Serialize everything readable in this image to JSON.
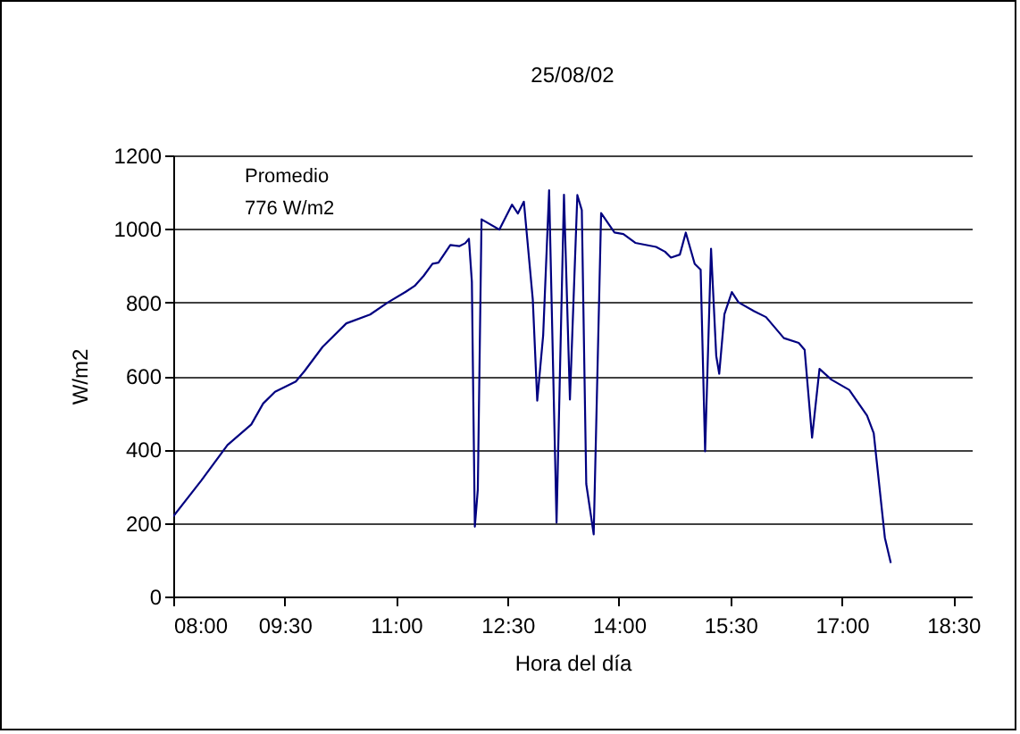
{
  "chart_data": {
    "type": "line",
    "title": "25/08/02",
    "xlabel": "Hora del día",
    "ylabel": "W/m2",
    "annotations": [
      "Promedio",
      "776 W/m2"
    ],
    "x": [
      8.0,
      8.375,
      8.73,
      9.05,
      9.21,
      9.37,
      9.65,
      9.77,
      10.01,
      10.33,
      10.65,
      10.89,
      11.13,
      11.25,
      11.37,
      11.49,
      11.57,
      11.73,
      11.85,
      11.93,
      11.98,
      12.02,
      12.06,
      12.1,
      12.15,
      12.39,
      12.56,
      12.64,
      12.72,
      12.84,
      12.9,
      12.98,
      13.06,
      13.16,
      13.26,
      13.34,
      13.44,
      13.5,
      13.56,
      13.66,
      13.76,
      13.94,
      14.06,
      14.22,
      14.5,
      14.62,
      14.7,
      14.82,
      14.9,
      15.02,
      15.1,
      15.16,
      15.24,
      15.31,
      15.35,
      15.42,
      15.52,
      15.61,
      15.82,
      15.98,
      16.22,
      16.42,
      16.5,
      16.6,
      16.7,
      16.86,
      17.1,
      17.34,
      17.43,
      17.58,
      17.66
    ],
    "series": [
      {
        "color": "#000080",
        "values": [
          218,
          315,
          412,
          468,
          525,
          557,
          585,
          614,
          679,
          743,
          767,
          800,
          829,
          845,
          872,
          905,
          908,
          956,
          953,
          961,
          973,
          856,
          190,
          291,
          1026,
          998,
          1066,
          1042,
          1074,
          808,
          533,
          711,
          1105,
          201,
          1093,
          536,
          1092,
          1051,
          306,
          169,
          1043,
          990,
          986,
          962,
          951,
          938,
          922,
          930,
          990,
          905,
          889,
          395,
          946,
          654,
          606,
          768,
          828,
          800,
          776,
          760,
          703,
          690,
          671,
          432,
          619,
          590,
          562,
          492,
          444,
          160,
          91
        ]
      }
    ],
    "xlim": [
      8,
      18.75
    ],
    "xticks": [
      {
        "value": 8,
        "label": "08:00"
      },
      {
        "value": 9.5,
        "label": "09:30"
      },
      {
        "value": 11,
        "label": "11:00"
      },
      {
        "value": 12.5,
        "label": "12:30"
      },
      {
        "value": 14,
        "label": "14:00"
      },
      {
        "value": 15.5,
        "label": "15:30"
      },
      {
        "value": 17,
        "label": "17:00"
      },
      {
        "value": 18.5,
        "label": "18:30"
      }
    ],
    "ylim": [
      0,
      1200
    ],
    "yticks": [
      0,
      200,
      400,
      600,
      800,
      1000,
      1200
    ],
    "grid": "y",
    "marker": "none",
    "line_style": "solid"
  }
}
